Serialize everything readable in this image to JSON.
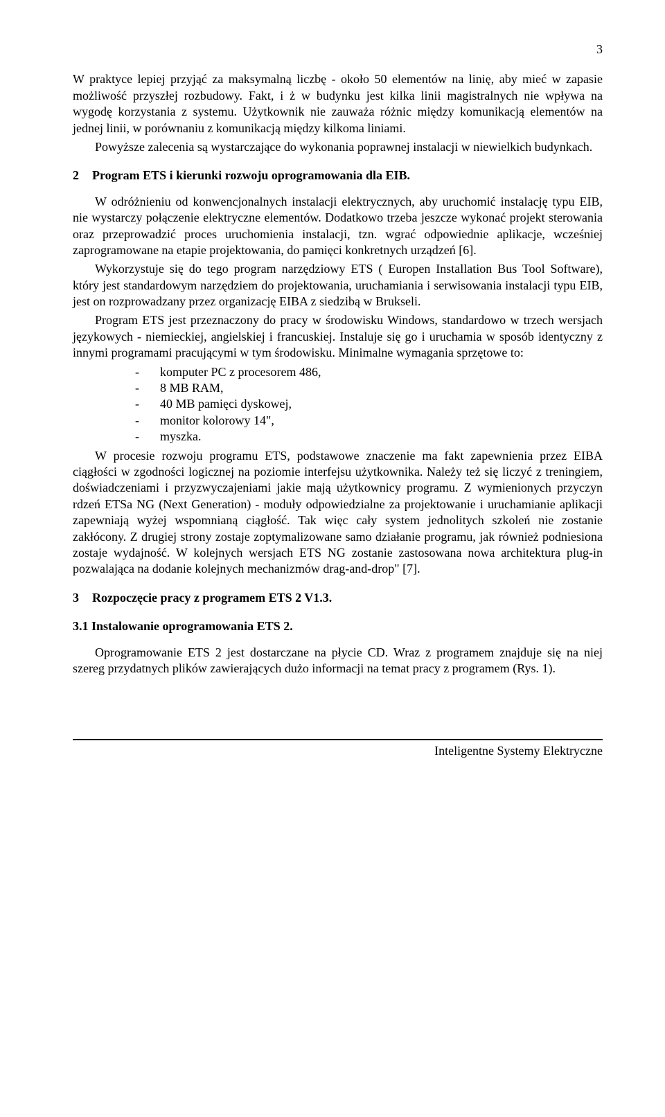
{
  "page_number": "3",
  "para_intro_1": "W praktyce lepiej przyjąć za maksymalną liczbę - około 50 elementów na linię, aby mieć w zapasie możliwość przyszłej rozbudowy. Fakt, i ż w budynku jest kilka linii magistralnych nie wpływa na wygodę korzystania z systemu. Użytkownik nie zauważa różnic między komunikacją elementów na jednej linii, w porównaniu z komunikacją między kilkoma liniami.",
  "para_intro_2": "Powyższe zalecenia są wystarczające do wykonania poprawnej instalacji w niewielkich budynkach.",
  "section2_num": "2",
  "section2_title": "Program ETS i kierunki rozwoju oprogramowania dla EIB.",
  "section2_para1": "W odróżnieniu od konwencjonalnych instalacji elektrycznych, aby uruchomić instalację typu EIB, nie wystarczy połączenie elektryczne elementów. Dodatkowo trzeba jeszcze wykonać projekt sterowania oraz przeprowadzić proces uruchomienia instalacji, tzn. wgrać odpowiednie aplikacje, wcześniej zaprogramowane na etapie projektowania, do pamięci konkretnych urządzeń [6].",
  "section2_para2": "Wykorzystuje się do tego program narzędziowy ETS ( Europen Installation Bus Tool Software), który jest standardowym narzędziem do projektowania, uruchamiania i serwisowania instalacji typu EIB, jest on rozprowadzany przez organizację EIBA z siedzibą w Brukseli.",
  "section2_para3": "Program ETS jest przeznaczony do pracy w środowisku Windows, standardowo w trzech wersjach językowych - niemieckiej, angielskiej i francuskiej. Instaluje się go i uruchamia w sposób identyczny z innymi programami pracującymi w tym środowisku. Minimalne wymagania sprzętowe to:",
  "req_items": [
    "komputer PC z procesorem 486,",
    "8 MB RAM,",
    "40 MB pamięci dyskowej,",
    "monitor kolorowy 14\",",
    "myszka."
  ],
  "section2_para4": "W procesie rozwoju programu ETS, podstawowe znaczenie ma fakt zapewnienia przez EIBA ciągłości w zgodności logicznej na poziomie interfejsu użytkownika. Należy też się liczyć z treningiem, doświadczeniami i przyzwyczajeniami jakie mają użytkownicy programu. Z wymienionych przyczyn rdzeń ETSa NG (Next Generation) - moduły odpowiedzialne za projektowanie i uruchamianie aplikacji zapewniają wyżej wspomnianą ciągłość. Tak więc cały system jednolitych szkoleń nie zostanie zakłócony. Z drugiej strony zostaje zoptymalizowane samo działanie programu, jak również podniesiona zostaje wydajność. W kolejnych wersjach ETS NG zostanie zastosowana nowa architektura plug-in pozwalająca na dodanie kolejnych mechanizmów drag-and-drop\" [7].",
  "section3_num": "3",
  "section3_title": "Rozpoczęcie pracy z programem ETS 2 V1.3.",
  "subsection3_1_title": "3.1 Instalowanie oprogramowania ETS 2.",
  "section3_para1": "Oprogramowanie ETS 2 jest dostarczane na płycie CD. Wraz z programem znajduje się na niej szereg przydatnych plików zawierających dużo informacji na temat pracy z programem (Rys. 1).",
  "footer_text": "Inteligentne Systemy Elektryczne"
}
